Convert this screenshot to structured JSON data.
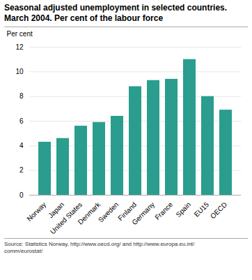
{
  "chart_data": {
    "type": "bar",
    "title": "Seasonal adjusted unemployment in selected countries.",
    "subtitle": "March 2004. Per cent of the labour force",
    "ylabel": "Per cent",
    "categories": [
      "Norway",
      "Japan",
      "United States",
      "Denmark",
      "Sweden",
      "Finland",
      "Germany",
      "France",
      "Spain",
      "EU15",
      "OECD"
    ],
    "values": [
      4.3,
      4.6,
      5.6,
      5.9,
      6.4,
      8.8,
      9.3,
      9.4,
      11.0,
      8.0,
      6.9
    ],
    "color": "#2a9d8f",
    "ylim": [
      0,
      12
    ],
    "yticks": [
      0,
      2,
      4,
      6,
      8,
      10,
      12
    ],
    "grid": true,
    "caption": "Source: Statistics Norway, http://www.oecd.org/ and http://www.europa.eu.int/\ncomm/eurostat/"
  }
}
